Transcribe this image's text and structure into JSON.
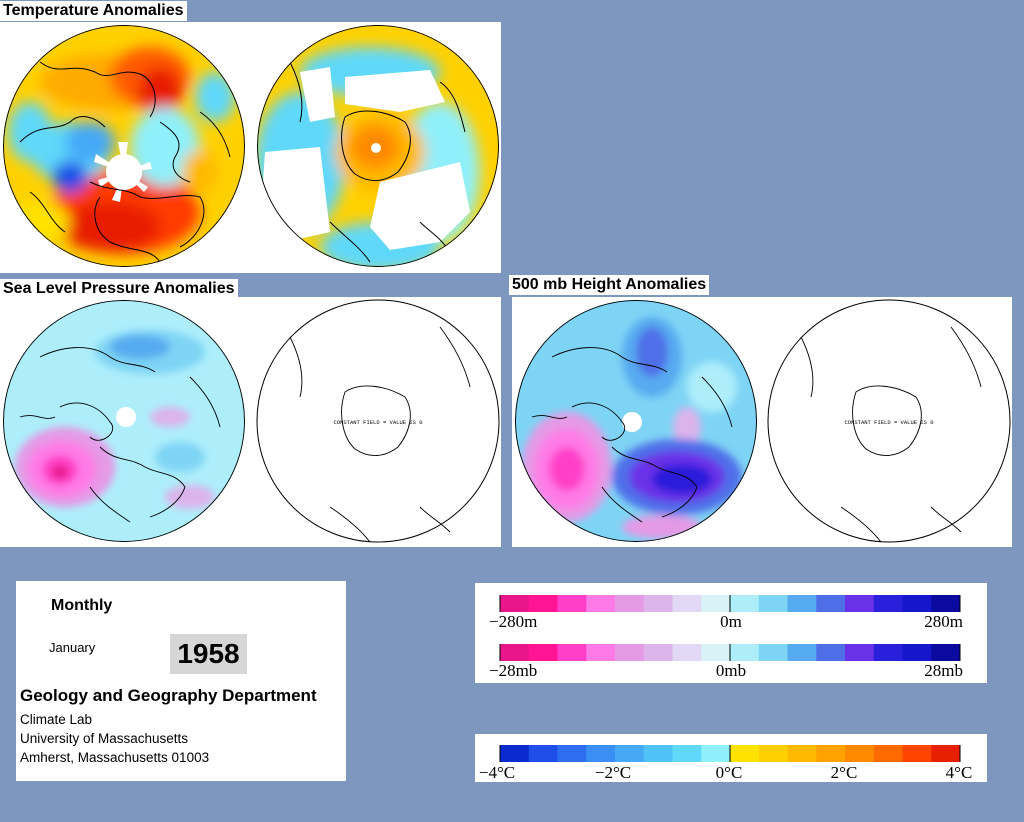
{
  "titles": {
    "temperature": "Temperature Anomalies",
    "slp": "Sea Level Pressure Anomalies",
    "height": "500 mb Height Anomalies"
  },
  "map_annotations": {
    "constant_field": "CONSTANT FIELD = VALUE IS 0"
  },
  "info": {
    "period": "Monthly",
    "month": "January",
    "year": "1958",
    "department": "Geology and Geography Department",
    "lab": "Climate Lab",
    "university": "University of Massachusetts",
    "address": "Amherst, Massachusetts 01003"
  },
  "legends": {
    "height_scale": {
      "colors": [
        "#e8168a",
        "#ff1493",
        "#ff3fc7",
        "#ff7ae6",
        "#e59ae6",
        "#dcb4ec",
        "#e0d8f5",
        "#d8f2f7",
        "#aeeefb",
        "#7ed4f5",
        "#56aaf0",
        "#4f6fe9",
        "#6a32e8",
        "#2a1fda",
        "#1515cc",
        "#0a0a9e"
      ],
      "labels": [
        "−280m",
        "0m",
        "280m"
      ]
    },
    "pressure_scale": {
      "colors": [
        "#e8168a",
        "#ff1493",
        "#ff3fc7",
        "#ff7ae6",
        "#e59ae6",
        "#dcb4ec",
        "#e0d8f5",
        "#d8f2f7",
        "#aeeefb",
        "#7ed4f5",
        "#56aaf0",
        "#4f6fe9",
        "#6a32e8",
        "#2a1fda",
        "#1515cc",
        "#0a0a9e"
      ],
      "labels": [
        "−28mb",
        "0mb",
        "28mb"
      ]
    },
    "temperature_scale": {
      "colors": [
        "#0a2bd0",
        "#1f4fe8",
        "#2d6ff0",
        "#3a8ff5",
        "#45a9f7",
        "#4fc3f8",
        "#5fd8fa",
        "#8ff0fb",
        "#ffe200",
        "#ffd000",
        "#ffba00",
        "#ffa200",
        "#ff8a00",
        "#ff6a00",
        "#ff4400",
        "#e81e00"
      ],
      "labels": [
        "−4°C",
        "−2°C",
        "0°C",
        "2°C",
        "4°C"
      ]
    }
  }
}
